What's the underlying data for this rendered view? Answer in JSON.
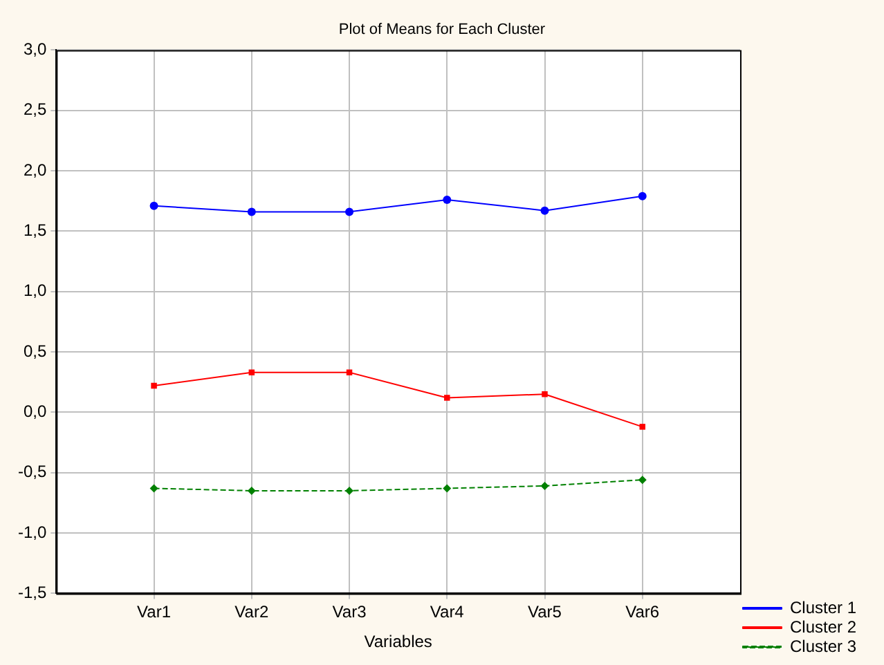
{
  "chart_data": {
    "type": "line",
    "title": "Plot of Means for Each Cluster",
    "xlabel": "Variables",
    "categories": [
      "Var1",
      "Var2",
      "Var3",
      "Var4",
      "Var5",
      "Var6"
    ],
    "series": [
      {
        "name": "Cluster 1",
        "color": "#0000ff",
        "marker": "circle",
        "line_style": "solid",
        "values": [
          1.71,
          1.66,
          1.66,
          1.76,
          1.67,
          1.79
        ]
      },
      {
        "name": "Cluster 2",
        "color": "#ff0000",
        "marker": "square",
        "line_style": "solid",
        "values": [
          0.22,
          0.33,
          0.33,
          0.12,
          0.15,
          -0.12
        ]
      },
      {
        "name": "Cluster 3",
        "color": "#008000",
        "marker": "diamond",
        "line_style": "dashed",
        "values": [
          -0.63,
          -0.65,
          -0.65,
          -0.63,
          -0.61,
          -0.56
        ]
      }
    ],
    "ylim": [
      -1.5,
      3.0
    ],
    "yticks": [
      {
        "value": -1.5,
        "label": "-1,5"
      },
      {
        "value": -1.0,
        "label": "-1,0"
      },
      {
        "value": -0.5,
        "label": "-0,5"
      },
      {
        "value": 0,
        "label": "0,0"
      },
      {
        "value": 0.5,
        "label": "0,5"
      },
      {
        "value": 1.0,
        "label": "1,0"
      },
      {
        "value": 1.5,
        "label": "1,5"
      },
      {
        "value": 2.0,
        "label": "2,0"
      },
      {
        "value": 2.5,
        "label": "2,5"
      },
      {
        "value": 3.0,
        "label": "3,0"
      }
    ],
    "grid": true,
    "legend": "bottom right"
  }
}
